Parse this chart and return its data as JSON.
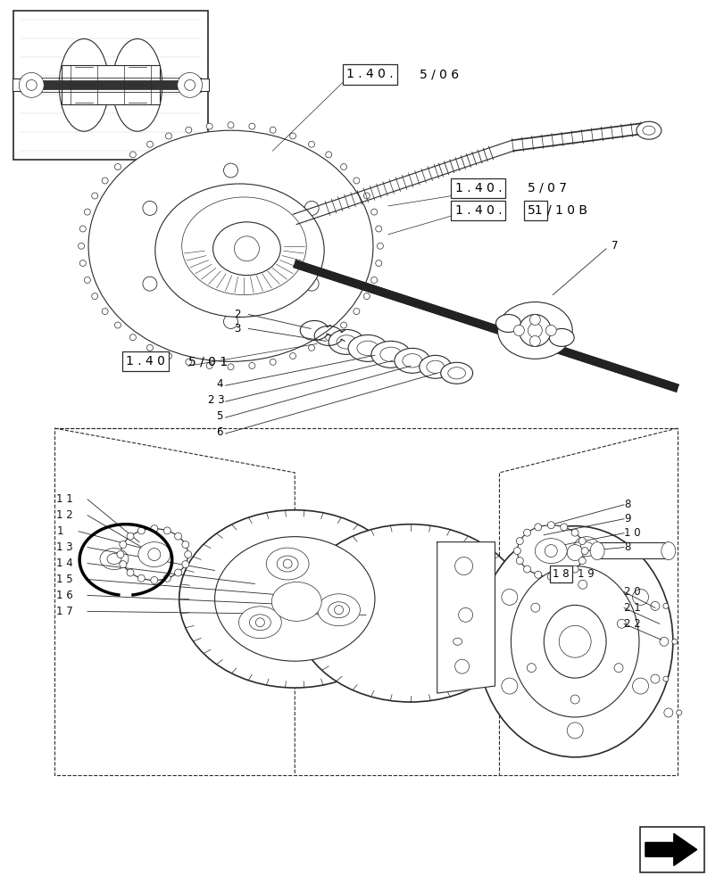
{
  "bg_color": "#ffffff",
  "line_color": "#2a2a2a",
  "figure_width": 8.12,
  "figure_height": 10.0,
  "dpi": 100
}
